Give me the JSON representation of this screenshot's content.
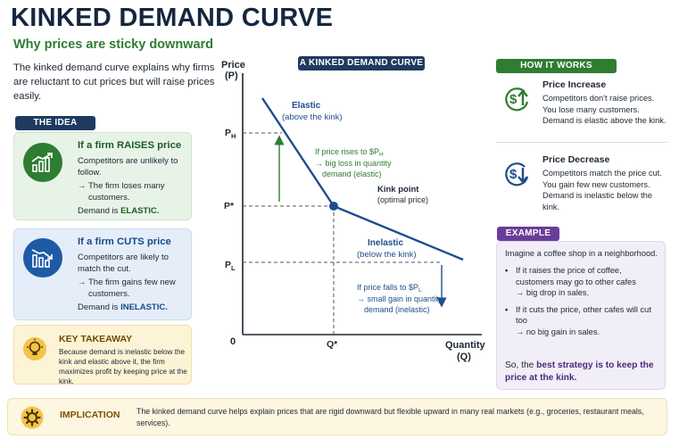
{
  "header": {
    "title": "KINKED DEMAND CURVE",
    "subtitle": "Why prices are sticky downward",
    "intro": "The kinked demand curve explains why firms are reluctant to cut prices but will raise prices easily."
  },
  "idea": {
    "tag": "THE IDEA",
    "raise": {
      "icon": "rising-chart-icon",
      "title": "If a firm RAISES price",
      "text": "Competitors are unlikely to follow.",
      "arrow_text": "The firm loses many customers.",
      "demand_prefix": "Demand is",
      "demand_value": "ELASTIC."
    },
    "cut": {
      "icon": "falling-chart-icon",
      "title": "If a firm CUTS price",
      "text": "Competitors are likely to match the cut.",
      "arrow_text": "The firm gains few new customers.",
      "demand_prefix": "Demand is",
      "demand_value": "INELASTIC."
    },
    "takeaway": {
      "icon": "lightbulb-icon",
      "title": "KEY TAKEAWAY",
      "text": "Because demand is inelastic below the kink and elastic above it, the firm maximizes profit by keeping price at the kink."
    }
  },
  "chart": {
    "tag": "A KINKED DEMAND CURVE",
    "y_axis_label_1": "Price",
    "y_axis_label_2": "(P)",
    "x_axis_label_1": "Quantity",
    "x_axis_label_2": "(Q)",
    "origin": "0",
    "ticks_y": [
      "P_H",
      "P*",
      "P_L"
    ],
    "tick_x": "Q*",
    "elastic_label_1": "Elastic",
    "elastic_label_2": "(above the kink)",
    "inelastic_label_1": "Inelastic",
    "inelastic_label_2": "(below the kink)",
    "kink_label_1": "Kink point",
    "kink_label_2": "(optimal price)",
    "rise_note_1": "If price rises to $P",
    "rise_note_sub": "H",
    "rise_note_2": "→ big loss in quantity",
    "rise_note_3": "demand (elastic)",
    "fall_note_1": "If price falls to $P",
    "fall_note_sub": "L",
    "fall_note_2": "→ small gain in quantity",
    "fall_note_3": "demand (inelastic)",
    "colors": {
      "curve": "#1e4e8c",
      "green": "#2e7d32",
      "axis": "#1d2733"
    }
  },
  "how_it_works": {
    "tag": "HOW IT WORKS",
    "increase": {
      "icon": "dollar-up-arrow-icon",
      "title": "Price Increase",
      "text": "Competitors don't raise prices. You lose many customers. Demand is elastic above the kink."
    },
    "decrease": {
      "icon": "dollar-down-arrow-icon",
      "title": "Price Decrease",
      "text": "Competitors match the price cut. You gain few new customers. Demand is inelastic below the kink."
    }
  },
  "example": {
    "tag": "EXAMPLE",
    "intro": "Imagine a coffee shop in a neighborhood.",
    "item1": "If it raises the price of coffee, customers may go to other cafes",
    "item1_arrow": "→ big drop in sales.",
    "item2": "If it cuts the price, other cafes will cut too",
    "item2_arrow": "→ no big gain in sales.",
    "conclusion_prefix": "So, the",
    "conclusion_bold": "best strategy is to keep the price at the kink."
  },
  "implication": {
    "icon": "gear-icon",
    "title": "IMPLICATION",
    "text": "The kinked demand curve helps explain prices that are rigid downward but flexible upward in many real markets (e.g., groceries, restaurant meals, services)."
  }
}
